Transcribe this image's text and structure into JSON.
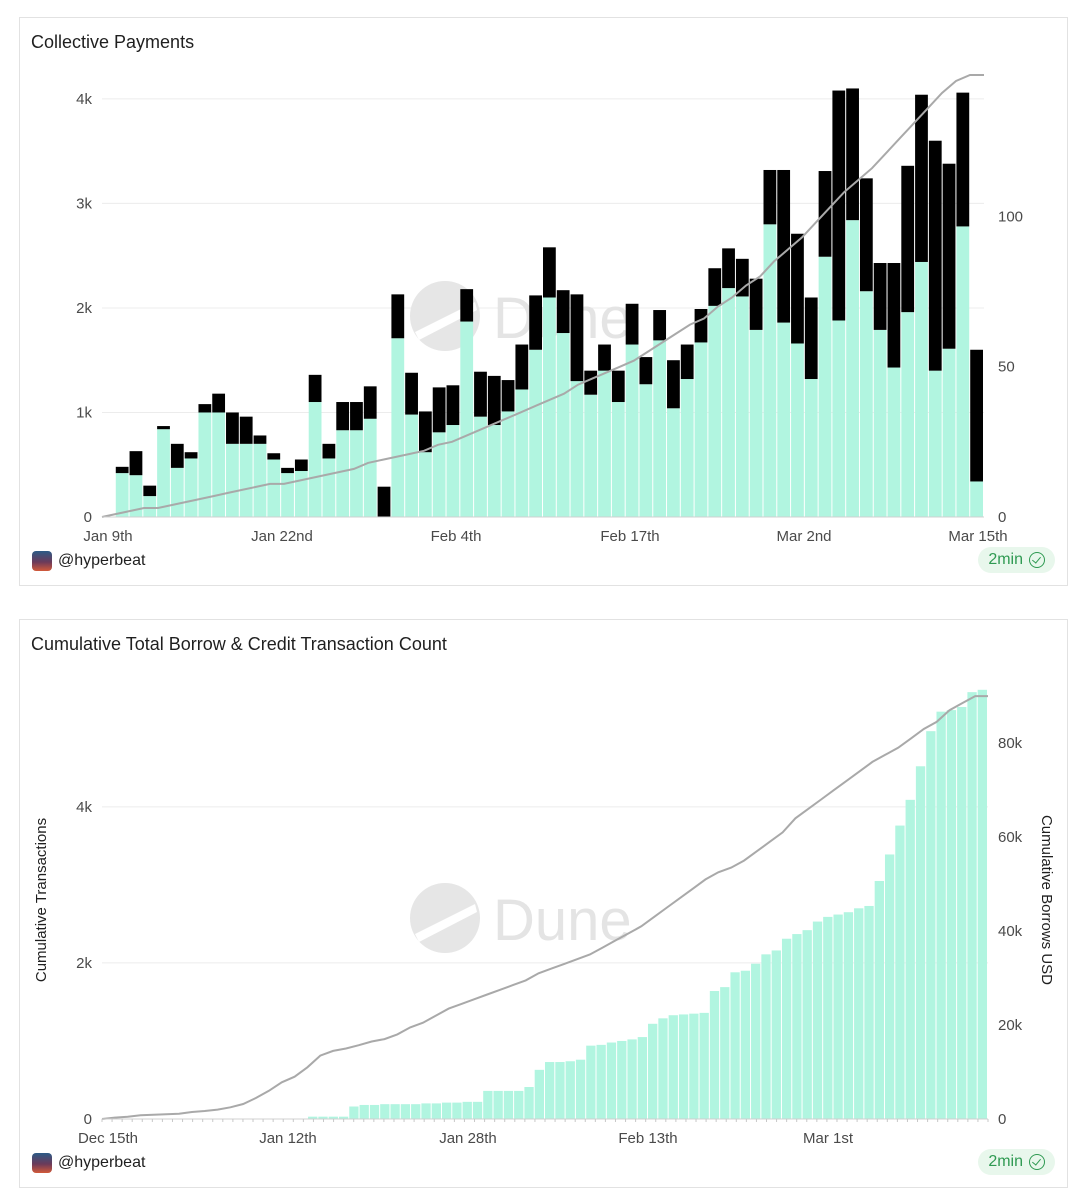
{
  "colors": {
    "mint": "#b1f5e0",
    "black": "#000000",
    "line": "#a9a9a9",
    "grid": "#ececec",
    "badge_green": "#2f9a52"
  },
  "watermark": "Dune",
  "chart_data": [
    {
      "type": "bar",
      "stacked": true,
      "title": "Collective Payments",
      "footer_user": "@hyperbeat",
      "badge": "2min",
      "x_tick_labels": [
        "Jan 9th",
        "Jan 22nd",
        "Feb 4th",
        "Feb 17th",
        "Mar 2nd",
        "Mar 15th"
      ],
      "y_left_ticks": [
        "0",
        "1k",
        "2k",
        "3k",
        "4k"
      ],
      "y_right_ticks": [
        "0",
        "50",
        "100"
      ],
      "ylim_left": [
        0,
        4200
      ],
      "ylim_right": [
        0,
        146
      ],
      "series": [
        {
          "values": [
            0,
            420,
            400,
            200,
            840,
            470,
            560,
            1000,
            1000,
            700,
            700,
            700,
            550,
            420,
            440,
            1100,
            560,
            830,
            830,
            940,
            0,
            1710,
            980,
            620,
            810,
            880,
            1870,
            960,
            880,
            1010,
            1220,
            1600,
            2100,
            1760,
            1300,
            1170,
            1400,
            1100,
            1650,
            1270,
            1690,
            1040,
            1320,
            1670,
            2020,
            2190,
            2110,
            1790,
            2800,
            1860,
            1660,
            1320,
            2490,
            1880,
            2840,
            2160,
            1790,
            1430,
            1960,
            2440,
            1400,
            1610,
            2780,
            340
          ]
        },
        {
          "values": [
            0,
            60,
            230,
            100,
            30,
            230,
            60,
            80,
            180,
            300,
            260,
            80,
            60,
            50,
            110,
            260,
            140,
            270,
            270,
            310,
            290,
            420,
            400,
            390,
            430,
            380,
            310,
            430,
            470,
            300,
            430,
            520,
            480,
            410,
            830,
            230,
            250,
            300,
            390,
            260,
            290,
            460,
            330,
            320,
            360,
            380,
            360,
            490,
            520,
            1460,
            1050,
            780,
            820,
            2200,
            1260,
            1080,
            640,
            1000,
            1400,
            1600,
            2200,
            1770,
            1280,
            1260,
            340
          ]
        },
        {
          "values": [
            0,
            1,
            2,
            3,
            3,
            4,
            5,
            6,
            7,
            8,
            9,
            10,
            11,
            11,
            12,
            13,
            14,
            15,
            16,
            18,
            19,
            20,
            21,
            22,
            24,
            25,
            27,
            29,
            31,
            33,
            35,
            37,
            39,
            41,
            44,
            46,
            48,
            50,
            52,
            55,
            58,
            61,
            64,
            66,
            70,
            73,
            77,
            80,
            85,
            89,
            93,
            98,
            103,
            108,
            112,
            116,
            121,
            126,
            131,
            136,
            141,
            145,
            147,
            147
          ]
        }
      ],
      "series_roles": [
        "bar-bottom",
        "bar-top",
        "line-right-axis"
      ]
    },
    {
      "type": "bar",
      "title": "Cumulative Total Borrow & Credit Transaction Count",
      "footer_user": "@hyperbeat",
      "badge": "2min",
      "xlabel": "",
      "ylabel": "Cumulative Transactions",
      "ylabel_right": "Cumulative Borrows USD",
      "x_tick_labels": [
        "Dec 15th",
        "Jan 12th",
        "Jan 28th",
        "Feb 13th",
        "Mar 1st"
      ],
      "y_left_ticks": [
        "0",
        "2k",
        "4k"
      ],
      "y_right_ticks": [
        "0",
        "20k",
        "40k",
        "60k",
        "80k"
      ],
      "ylim_left": [
        0,
        5600
      ],
      "ylim_right": [
        0,
        93000
      ],
      "series": [
        {
          "values": [
            0,
            0,
            0,
            0,
            0,
            0,
            0,
            0,
            0,
            0,
            0,
            0,
            0,
            0,
            0,
            0,
            0,
            0,
            0,
            0,
            30,
            30,
            30,
            30,
            160,
            180,
            180,
            190,
            190,
            190,
            190,
            200,
            200,
            210,
            210,
            220,
            220,
            360,
            360,
            360,
            360,
            410,
            630,
            730,
            730,
            740,
            760,
            940,
            950,
            980,
            1000,
            1020,
            1050,
            1220,
            1290,
            1330,
            1340,
            1350,
            1360,
            1640,
            1690,
            1880,
            1900,
            1990,
            2110,
            2160,
            2310,
            2370,
            2420,
            2530,
            2590,
            2620,
            2650,
            2700,
            2730,
            3050,
            3390,
            3760,
            4090,
            4520,
            4970,
            5220,
            5240,
            5280,
            5470,
            5500
          ]
        },
        {
          "values": [
            0,
            300,
            500,
            800,
            900,
            1000,
            1100,
            1500,
            1700,
            2000,
            2500,
            3200,
            4500,
            6000,
            7800,
            9000,
            11000,
            13500,
            14500,
            15000,
            15700,
            16500,
            17000,
            18000,
            19500,
            20500,
            22000,
            23500,
            24500,
            25500,
            26500,
            27500,
            28500,
            29500,
            31000,
            32000,
            33000,
            34000,
            35000,
            36500,
            38000,
            39500,
            41000,
            43000,
            45000,
            47000,
            49000,
            51000,
            52500,
            53500,
            55000,
            57000,
            59000,
            61000,
            64000,
            66000,
            68000,
            70000,
            72000,
            74000,
            76000,
            77500,
            79000,
            81000,
            83000,
            84500,
            87000,
            88500,
            90000,
            90000
          ]
        }
      ],
      "series_roles": [
        "bar-left-axis",
        "line-right-axis"
      ]
    }
  ]
}
